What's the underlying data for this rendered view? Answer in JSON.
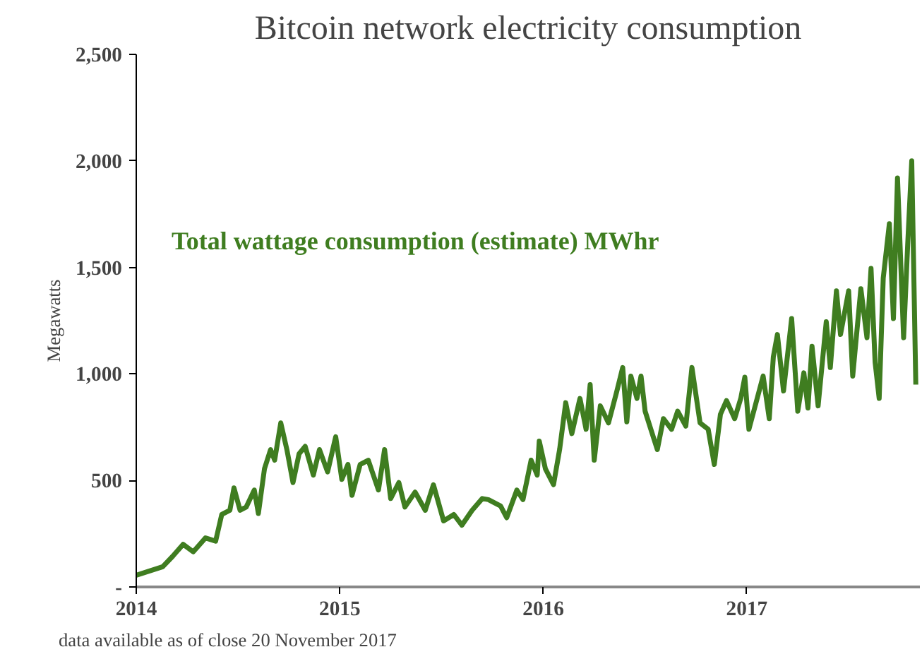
{
  "chart_data": {
    "type": "line",
    "title": "Bitcoin network electricity consumption",
    "ylabel": "Megawatts",
    "annotations": [
      "data available as of close 20 November 2017"
    ],
    "xlim": [
      2014,
      2017.85
    ],
    "xticks": [
      2014,
      2015,
      2016,
      2017
    ],
    "ylim": [
      0,
      2500
    ],
    "yticks": [
      {
        "value": 0,
        "label": "-"
      },
      500,
      {
        "value": 1000,
        "label": "1,000"
      },
      {
        "value": 1500,
        "label": "1,500"
      },
      {
        "value": 2000,
        "label": "2,000"
      },
      {
        "value": 2500,
        "label": "2,500"
      }
    ],
    "grid": false,
    "series": [
      {
        "name": "Total wattage consumption (estimate) MWhr",
        "color": "#3f7d20",
        "x": [
          2014.0,
          2014.13,
          2014.18,
          2014.23,
          2014.28,
          2014.34,
          2014.39,
          2014.42,
          2014.46,
          2014.48,
          2014.51,
          2014.54,
          2014.58,
          2014.6,
          2014.63,
          2014.66,
          2014.68,
          2014.71,
          2014.74,
          2014.77,
          2014.8,
          2014.83,
          2014.87,
          2014.9,
          2014.94,
          2014.98,
          2015.01,
          2015.04,
          2015.06,
          2015.1,
          2015.14,
          2015.19,
          2015.22,
          2015.25,
          2015.29,
          2015.32,
          2015.37,
          2015.42,
          2015.46,
          2015.51,
          2015.56,
          2015.6,
          2015.65,
          2015.7,
          2015.73,
          2015.79,
          2015.82,
          2015.87,
          2015.9,
          2015.94,
          2015.97,
          2015.98,
          2016.01,
          2016.05,
          2016.08,
          2016.11,
          2016.14,
          2016.18,
          2016.21,
          2016.23,
          2016.25,
          2016.28,
          2016.32,
          2016.36,
          2016.39,
          2016.41,
          2016.43,
          2016.46,
          2016.48,
          2016.5,
          2016.53,
          2016.56,
          2016.59,
          2016.63,
          2016.66,
          2016.7,
          2016.73,
          2016.77,
          2016.81,
          2016.84,
          2016.87,
          2016.9,
          2016.94,
          2016.97,
          2016.99,
          2017.01,
          2017.08,
          2017.11,
          2017.13,
          2017.15,
          2017.18,
          2017.22,
          2017.25,
          2017.28,
          2017.3,
          2017.32,
          2017.35,
          2017.39,
          2017.41,
          2017.44,
          2017.46,
          2017.5,
          2017.52,
          2017.56,
          2017.59,
          2017.61,
          2017.63,
          2017.65,
          2017.67,
          2017.7,
          2017.72,
          2017.74,
          2017.77,
          2017.79,
          2017.81,
          2017.83
        ],
        "values": [
          55,
          95,
          145,
          200,
          165,
          230,
          215,
          340,
          360,
          465,
          360,
          375,
          455,
          345,
          555,
          645,
          595,
          770,
          645,
          490,
          625,
          660,
          525,
          645,
          540,
          705,
          505,
          575,
          430,
          575,
          595,
          455,
          645,
          415,
          490,
          375,
          445,
          360,
          480,
          310,
          340,
          290,
          360,
          415,
          410,
          380,
          325,
          455,
          410,
          595,
          525,
          685,
          555,
          480,
          645,
          865,
          720,
          885,
          740,
          950,
          595,
          850,
          770,
          915,
          1030,
          775,
          990,
          885,
          990,
          825,
          735,
          645,
          790,
          740,
          825,
          755,
          1030,
          770,
          740,
          575,
          810,
          875,
          790,
          885,
          985,
          740,
          990,
          790,
          1080,
          1185,
          920,
          1260,
          825,
          1005,
          840,
          1130,
          850,
          1245,
          1030,
          1390,
          1185,
          1390,
          990,
          1400,
          1170,
          1495,
          1055,
          885,
          1450,
          1705,
          1260,
          1920,
          1170,
          1605,
          2000,
          950
        ]
      }
    ]
  }
}
